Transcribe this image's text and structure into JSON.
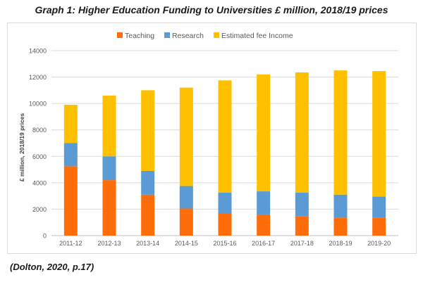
{
  "title": "Graph 1: Higher Education Funding to Universities £ million, 2018/19 prices",
  "source": "(Dolton, 2020, p.17)",
  "chart_data": {
    "type": "bar",
    "stacked": true,
    "categories": [
      "2011-12",
      "2012-13",
      "2013-14",
      "2014-15",
      "2015-16",
      "2016-17",
      "2017-18",
      "2018-19",
      "2019-20"
    ],
    "series": [
      {
        "name": "Teaching",
        "color": "#ff6d0a",
        "values": [
          5250,
          4200,
          3100,
          2050,
          1650,
          1600,
          1450,
          1350,
          1350
        ]
      },
      {
        "name": "Research",
        "color": "#5b9bd5",
        "values": [
          1750,
          1800,
          1800,
          1700,
          1600,
          1750,
          1800,
          1750,
          1600
        ]
      },
      {
        "name": "Estimated fee Income",
        "color": "#ffc000",
        "values": [
          2900,
          4600,
          6100,
          7450,
          8500,
          8850,
          9100,
          9400,
          9500
        ]
      }
    ],
    "ylabel": "£ million,  2018/19 prices",
    "xlabel": "",
    "ylim": [
      0,
      14000
    ],
    "yticks": [
      0,
      2000,
      4000,
      6000,
      8000,
      10000,
      12000,
      14000
    ],
    "grid": true,
    "legend": "top"
  }
}
